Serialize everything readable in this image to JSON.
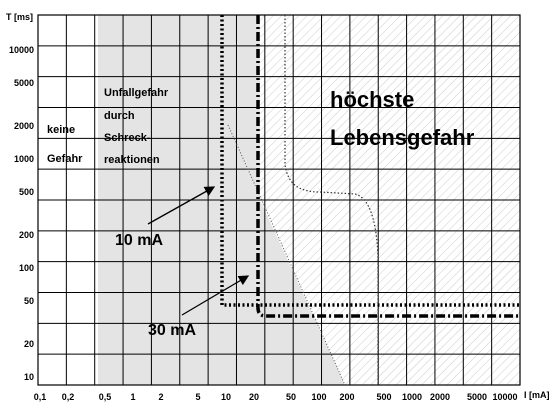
{
  "y_axis": {
    "label": "T [ms]",
    "ticks": [
      "10000",
      "5000",
      "2000",
      "1000",
      "500",
      "200",
      "100",
      "50",
      "20",
      "10"
    ]
  },
  "x_axis": {
    "label": "I [mA]",
    "ticks": [
      "0,1",
      "0,2",
      "0,5",
      "1",
      "2",
      "5",
      "10",
      "20",
      "50",
      "100",
      "200",
      "500",
      "1000",
      "2000",
      "5000",
      "10000"
    ]
  },
  "zones": {
    "none": [
      "keine",
      "Gefahr"
    ],
    "accident": [
      "Unfallgefahr",
      "durch",
      "Schreck-",
      "reaktionen"
    ],
    "danger": [
      "höchste",
      "Lebensgefahr"
    ]
  },
  "markers": [
    "10 mA",
    "30 mA"
  ]
}
